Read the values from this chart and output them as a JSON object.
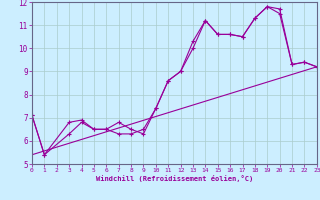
{
  "xlabel": "Windchill (Refroidissement éolien,°C)",
  "ylabel": "",
  "background_color": "#cceeff",
  "grid_color": "#aacccc",
  "line_color": "#990099",
  "xlim": [
    0,
    23
  ],
  "ylim": [
    5,
    12
  ],
  "xticks": [
    0,
    1,
    2,
    3,
    4,
    5,
    6,
    7,
    8,
    9,
    10,
    11,
    12,
    13,
    14,
    15,
    16,
    17,
    18,
    19,
    20,
    21,
    22,
    23
  ],
  "yticks": [
    5,
    6,
    7,
    8,
    9,
    10,
    11,
    12
  ],
  "line1_x": [
    0,
    1,
    3,
    4,
    5,
    6,
    7,
    8,
    9,
    10,
    11,
    12,
    13,
    14,
    15,
    16,
    17,
    18,
    19,
    20,
    21,
    22,
    23
  ],
  "line1_y": [
    7.1,
    5.4,
    6.3,
    6.8,
    6.5,
    6.5,
    6.3,
    6.3,
    6.5,
    7.4,
    8.6,
    9.0,
    10.0,
    11.2,
    10.6,
    10.6,
    10.5,
    11.3,
    11.8,
    11.7,
    9.3,
    9.4,
    9.2
  ],
  "line2_x": [
    0,
    1,
    3,
    4,
    5,
    6,
    7,
    8,
    9,
    10,
    11,
    12,
    13,
    14,
    15,
    16,
    17,
    18,
    19,
    20,
    21,
    22,
    23
  ],
  "line2_y": [
    7.1,
    5.4,
    6.8,
    6.9,
    6.5,
    6.5,
    6.8,
    6.5,
    6.3,
    7.4,
    8.6,
    9.0,
    10.3,
    11.2,
    10.6,
    10.6,
    10.5,
    11.3,
    11.8,
    11.5,
    9.3,
    9.4,
    9.2
  ],
  "line3_x": [
    0,
    23
  ],
  "line3_y": [
    5.4,
    9.2
  ]
}
